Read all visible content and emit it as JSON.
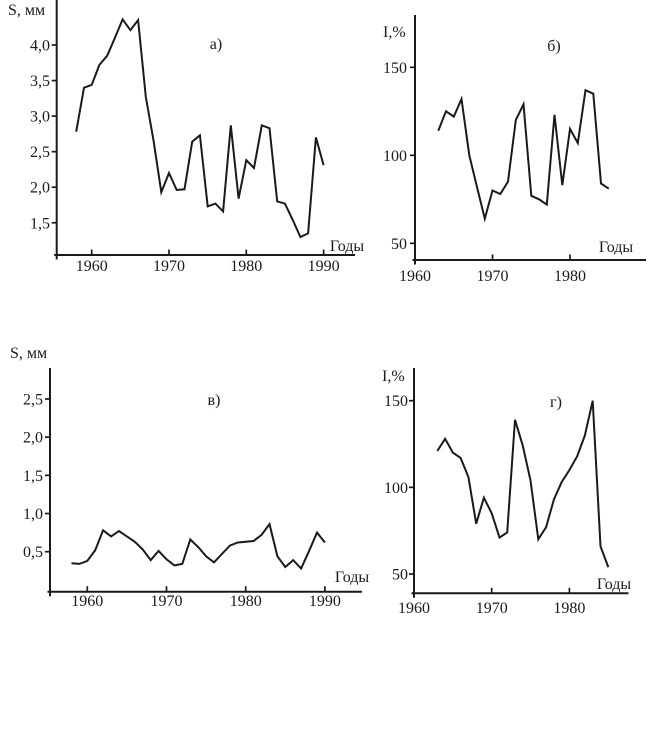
{
  "figure": {
    "background_color": "#ffffff",
    "ink_color": "#1a1a1a",
    "description": "Four-panel time-series figure with Cyrillic labels"
  },
  "chart_data": [
    {
      "id": "panel-a",
      "type": "line",
      "panel_label": "а)",
      "ylabel": "S, мм",
      "xlabel": "Годы",
      "line_color": "#1a1a1a",
      "xlim": [
        1955.5,
        1994
      ],
      "ylim": [
        1.2,
        4.65
      ],
      "grid": false,
      "years": [
        1958,
        1959,
        1960,
        1961,
        1962,
        1963,
        1964,
        1965,
        1966,
        1967,
        1968,
        1969,
        1970,
        1971,
        1972,
        1973,
        1974,
        1975,
        1976,
        1977,
        1978,
        1979,
        1980,
        1981,
        1982,
        1983,
        1984,
        1985,
        1986,
        1987,
        1988,
        1989,
        1990
      ],
      "values": [
        2.78,
        3.4,
        3.44,
        3.72,
        3.85,
        4.1,
        4.36,
        4.21,
        4.35,
        3.27,
        2.66,
        1.93,
        2.2,
        1.96,
        1.97,
        2.64,
        2.73,
        1.73,
        1.77,
        1.66,
        2.87,
        1.84,
        2.38,
        2.27,
        2.87,
        2.83,
        1.8,
        1.77,
        1.54,
        1.3,
        1.35,
        2.7,
        2.31
      ],
      "yticks": [
        {
          "value": 4.0,
          "label": "4,0"
        },
        {
          "value": 3.5,
          "label": "3,5"
        },
        {
          "value": 3.0,
          "label": "3,0"
        },
        {
          "value": 2.5,
          "label": "2,5"
        },
        {
          "value": 2.0,
          "label": "2,0"
        },
        {
          "value": 1.5,
          "label": "1,5"
        }
      ],
      "xticks": [
        {
          "year": 1960,
          "label": "1960",
          "mark": true
        },
        {
          "year": 1970,
          "label": "1970",
          "mark": true
        },
        {
          "year": 1980,
          "label": "1980",
          "mark": true
        },
        {
          "year": 1990,
          "label": "1990",
          "mark": true
        }
      ]
    },
    {
      "id": "panel-b",
      "type": "line",
      "panel_label": "б)",
      "ylabel": "I,%",
      "xlabel": "Годы",
      "line_color": "#1a1a1a",
      "xlim": [
        1960,
        1990
      ],
      "ylim": [
        45,
        175
      ],
      "grid": false,
      "years": [
        1963,
        1964,
        1965,
        1966,
        1967,
        1968,
        1969,
        1970,
        1971,
        1972,
        1973,
        1974,
        1975,
        1976,
        1977,
        1978,
        1979,
        1980,
        1981,
        1982,
        1983,
        1984,
        1985
      ],
      "values": [
        114,
        125,
        122,
        132,
        100,
        82,
        64,
        80,
        78,
        85,
        120,
        129,
        77,
        75,
        72,
        123,
        83,
        115,
        107,
        137,
        135,
        84,
        81
      ],
      "yticks": [
        {
          "value": 150,
          "label": "150"
        },
        {
          "value": 100,
          "label": "100"
        },
        {
          "value": 50,
          "label": "50"
        }
      ],
      "xticks": [
        {
          "year": 1960,
          "label": "1960",
          "mark": false
        },
        {
          "year": 1970,
          "label": "1970",
          "mark": true
        },
        {
          "year": 1980,
          "label": "1980",
          "mark": true
        }
      ]
    },
    {
      "id": "panel-v",
      "type": "line",
      "panel_label": "в)",
      "ylabel": "S, мм",
      "xlabel": "Годы",
      "line_color": "#1a1a1a",
      "xlim": [
        1955.3,
        1994.6
      ],
      "ylim": [
        0.2,
        2.95
      ],
      "grid": false,
      "years": [
        1958,
        1959,
        1960,
        1961,
        1962,
        1963,
        1964,
        1965,
        1966,
        1967,
        1968,
        1969,
        1970,
        1971,
        1972,
        1973,
        1974,
        1975,
        1976,
        1977,
        1978,
        1979,
        1980,
        1981,
        1982,
        1983,
        1984,
        1985,
        1986,
        1987,
        1988,
        1989,
        1990
      ],
      "values": [
        0.35,
        0.34,
        0.38,
        0.52,
        0.78,
        0.7,
        0.77,
        0.7,
        0.63,
        0.53,
        0.39,
        0.51,
        0.4,
        0.32,
        0.34,
        0.66,
        0.56,
        0.44,
        0.36,
        0.47,
        0.58,
        0.62,
        0.63,
        0.64,
        0.72,
        0.86,
        0.44,
        0.3,
        0.39,
        0.28,
        0.51,
        0.75,
        0.62
      ],
      "yticks": [
        {
          "value": 2.5,
          "label": "2,5"
        },
        {
          "value": 2.0,
          "label": "2,0"
        },
        {
          "value": 1.5,
          "label": "1,5"
        },
        {
          "value": 1.0,
          "label": "1,0"
        },
        {
          "value": 0.5,
          "label": "0,5"
        }
      ],
      "xticks": [
        {
          "year": 1960,
          "label": "1960",
          "mark": true
        },
        {
          "year": 1970,
          "label": "1970",
          "mark": true
        },
        {
          "year": 1980,
          "label": "1980",
          "mark": true
        },
        {
          "year": 1990,
          "label": "1990",
          "mark": true
        }
      ]
    },
    {
      "id": "panel-g",
      "type": "line",
      "panel_label": "г)",
      "ylabel": "I,%",
      "xlabel": "Годы",
      "line_color": "#1a1a1a",
      "xlim": [
        1960,
        1987.6
      ],
      "ylim": [
        42,
        168
      ],
      "grid": false,
      "years": [
        1963,
        1964,
        1965,
        1966,
        1967,
        1968,
        1969,
        1970,
        1971,
        1972,
        1973,
        1974,
        1975,
        1976,
        1977,
        1978,
        1979,
        1980,
        1981,
        1982,
        1983,
        1984,
        1985
      ],
      "values": [
        121,
        128,
        120,
        117,
        106,
        79,
        94,
        85,
        71,
        74,
        139,
        124,
        104,
        70,
        77,
        93,
        103,
        110,
        118,
        130,
        150,
        66,
        54
      ],
      "yticks": [
        {
          "value": 150,
          "label": "150"
        },
        {
          "value": 100,
          "label": "100"
        },
        {
          "value": 50,
          "label": "50"
        }
      ],
      "xticks": [
        {
          "year": 1960,
          "label": "1960",
          "mark": false
        },
        {
          "year": 1970,
          "label": "1970",
          "mark": true
        },
        {
          "year": 1980,
          "label": "1980",
          "mark": true
        }
      ]
    }
  ]
}
